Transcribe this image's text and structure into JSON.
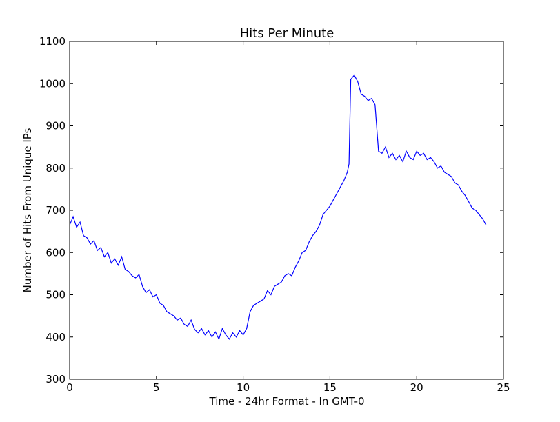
{
  "chart_data": {
    "type": "line",
    "title": "Hits Per Minute",
    "x_label": "Time - 24hr Format - In GMT-0",
    "y_label": "Number of Hits From Unique IPs",
    "color": "#0000ff",
    "xlim": [
      0,
      25
    ],
    "ylim": [
      300,
      1100
    ],
    "xticks": [
      0,
      5,
      10,
      15,
      20,
      25
    ],
    "yticks": [
      300,
      400,
      500,
      600,
      700,
      800,
      900,
      1000,
      1100
    ],
    "x": [
      0,
      0.2,
      0.4,
      0.6,
      0.8,
      1.0,
      1.2,
      1.4,
      1.6,
      1.8,
      2.0,
      2.2,
      2.4,
      2.6,
      2.8,
      3.0,
      3.2,
      3.4,
      3.6,
      3.8,
      4.0,
      4.2,
      4.4,
      4.6,
      4.8,
      5.0,
      5.2,
      5.4,
      5.6,
      5.8,
      6.0,
      6.2,
      6.4,
      6.6,
      6.8,
      7.0,
      7.2,
      7.4,
      7.6,
      7.8,
      8.0,
      8.2,
      8.4,
      8.6,
      8.8,
      9.0,
      9.2,
      9.4,
      9.6,
      9.8,
      10.0,
      10.2,
      10.4,
      10.6,
      10.8,
      11.0,
      11.2,
      11.4,
      11.6,
      11.8,
      12.0,
      12.2,
      12.4,
      12.6,
      12.8,
      13.0,
      13.2,
      13.4,
      13.6,
      13.8,
      14.0,
      14.2,
      14.4,
      14.6,
      14.8,
      15.0,
      15.2,
      15.4,
      15.6,
      15.8,
      16.0,
      16.1,
      16.2,
      16.4,
      16.6,
      16.8,
      17.0,
      17.2,
      17.4,
      17.6,
      17.8,
      18.0,
      18.2,
      18.4,
      18.6,
      18.8,
      19.0,
      19.2,
      19.4,
      19.6,
      19.8,
      20.0,
      20.2,
      20.4,
      20.6,
      20.8,
      21.0,
      21.2,
      21.4,
      21.6,
      21.8,
      22.0,
      22.2,
      22.4,
      22.6,
      22.8,
      23.0,
      23.2,
      23.4,
      23.6,
      23.8,
      24.0
    ],
    "values": [
      665,
      685,
      660,
      672,
      640,
      635,
      620,
      628,
      605,
      612,
      590,
      600,
      575,
      585,
      570,
      590,
      560,
      555,
      545,
      540,
      548,
      520,
      505,
      512,
      495,
      500,
      480,
      475,
      460,
      455,
      450,
      440,
      445,
      430,
      425,
      440,
      418,
      410,
      420,
      405,
      415,
      400,
      412,
      395,
      420,
      405,
      395,
      410,
      400,
      415,
      405,
      420,
      460,
      475,
      480,
      485,
      490,
      510,
      500,
      520,
      525,
      530,
      545,
      550,
      545,
      565,
      580,
      600,
      605,
      625,
      640,
      650,
      665,
      690,
      700,
      710,
      725,
      740,
      755,
      770,
      790,
      810,
      1010,
      1020,
      1005,
      975,
      970,
      960,
      965,
      950,
      840,
      835,
      850,
      825,
      835,
      820,
      830,
      815,
      840,
      825,
      820,
      840,
      830,
      835,
      820,
      825,
      815,
      800,
      805,
      790,
      785,
      780,
      765,
      760,
      745,
      735,
      720,
      705,
      700,
      690,
      680,
      665
    ]
  }
}
